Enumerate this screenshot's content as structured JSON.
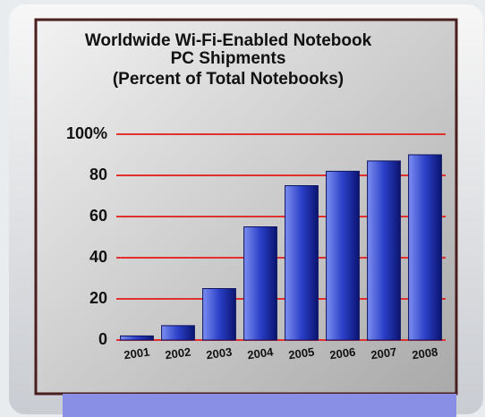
{
  "chart_data": {
    "type": "bar",
    "title": "Worldwide Wi-Fi-Enabled Notebook PC Shipments",
    "subtitle": "(Percent of Total Notebooks)",
    "categories": [
      "2001",
      "2002",
      "2003",
      "2004",
      "2005",
      "2006",
      "2007",
      "2008"
    ],
    "values": [
      2,
      7,
      25,
      55,
      75,
      82,
      87,
      90
    ],
    "color": "#2b40c8",
    "ylim": [
      0,
      100
    ],
    "yticks": [
      0,
      20,
      40,
      60,
      80,
      {
        "value": 100,
        "label": "100%"
      }
    ],
    "grid": true,
    "grid_color": "#e03030"
  }
}
